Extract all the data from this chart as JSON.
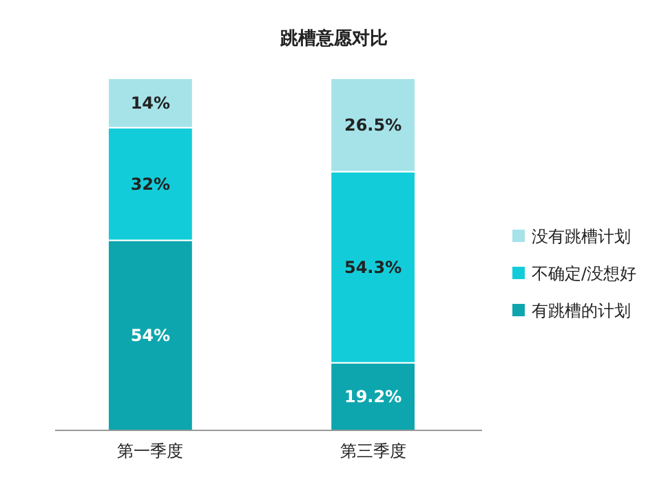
{
  "chart_data": {
    "type": "bar",
    "title": "跳槽意愿对比",
    "categories": [
      "第一季度",
      "第三季度"
    ],
    "stacked": true,
    "legend": "right",
    "series": [
      {
        "name": "有跳槽的计划",
        "color": "#0ea6ae",
        "values": [
          54,
          19.2
        ],
        "value_labels": [
          "54%",
          "19.2%"
        ]
      },
      {
        "name": "不确定/没想好",
        "color": "#12cdd9",
        "values": [
          32,
          54.3
        ],
        "value_labels": [
          "32%",
          "54.3%"
        ]
      },
      {
        "name": "没有跳槽计划",
        "color": "#a5e3e9",
        "values": [
          14,
          26.5
        ],
        "value_labels": [
          "14%",
          "26.5%"
        ]
      }
    ]
  }
}
